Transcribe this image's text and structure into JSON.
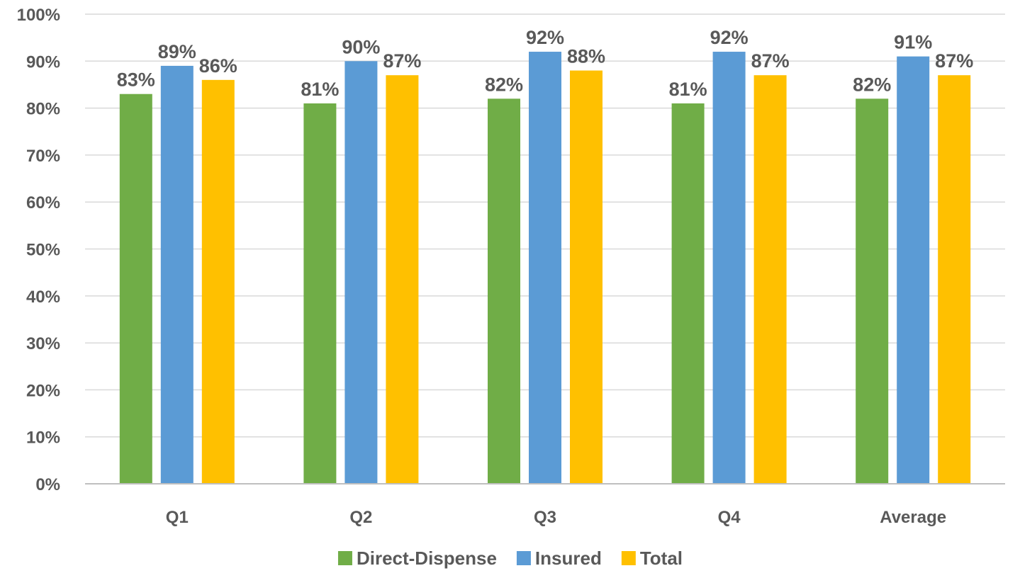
{
  "chart_data": {
    "type": "bar",
    "title": "",
    "xlabel": "",
    "ylabel": "",
    "categories": [
      "Q1",
      "Q2",
      "Q3",
      "Q4",
      "Average"
    ],
    "series": [
      {
        "name": "Direct-Dispense",
        "color": "#70ad47",
        "values": [
          83,
          81,
          82,
          81,
          82
        ],
        "labels": [
          "83%",
          "81%",
          "82%",
          "81%",
          "82%"
        ]
      },
      {
        "name": "Insured",
        "color": "#5b9bd5",
        "values": [
          89,
          90,
          92,
          92,
          91
        ],
        "labels": [
          "89%",
          "90%",
          "92%",
          "92%",
          "91%"
        ]
      },
      {
        "name": "Total",
        "color": "#ffc000",
        "values": [
          86,
          87,
          88,
          87,
          87
        ],
        "labels": [
          "86%",
          "87%",
          "88%",
          "87%",
          "87%"
        ]
      }
    ],
    "ylim": [
      0,
      100
    ],
    "yticks": [
      0,
      10,
      20,
      30,
      40,
      50,
      60,
      70,
      80,
      90,
      100
    ],
    "ytick_labels": [
      "0%",
      "10%",
      "20%",
      "30%",
      "40%",
      "50%",
      "60%",
      "70%",
      "80%",
      "90%",
      "100%"
    ],
    "grid": true,
    "legend_position": "bottom"
  }
}
